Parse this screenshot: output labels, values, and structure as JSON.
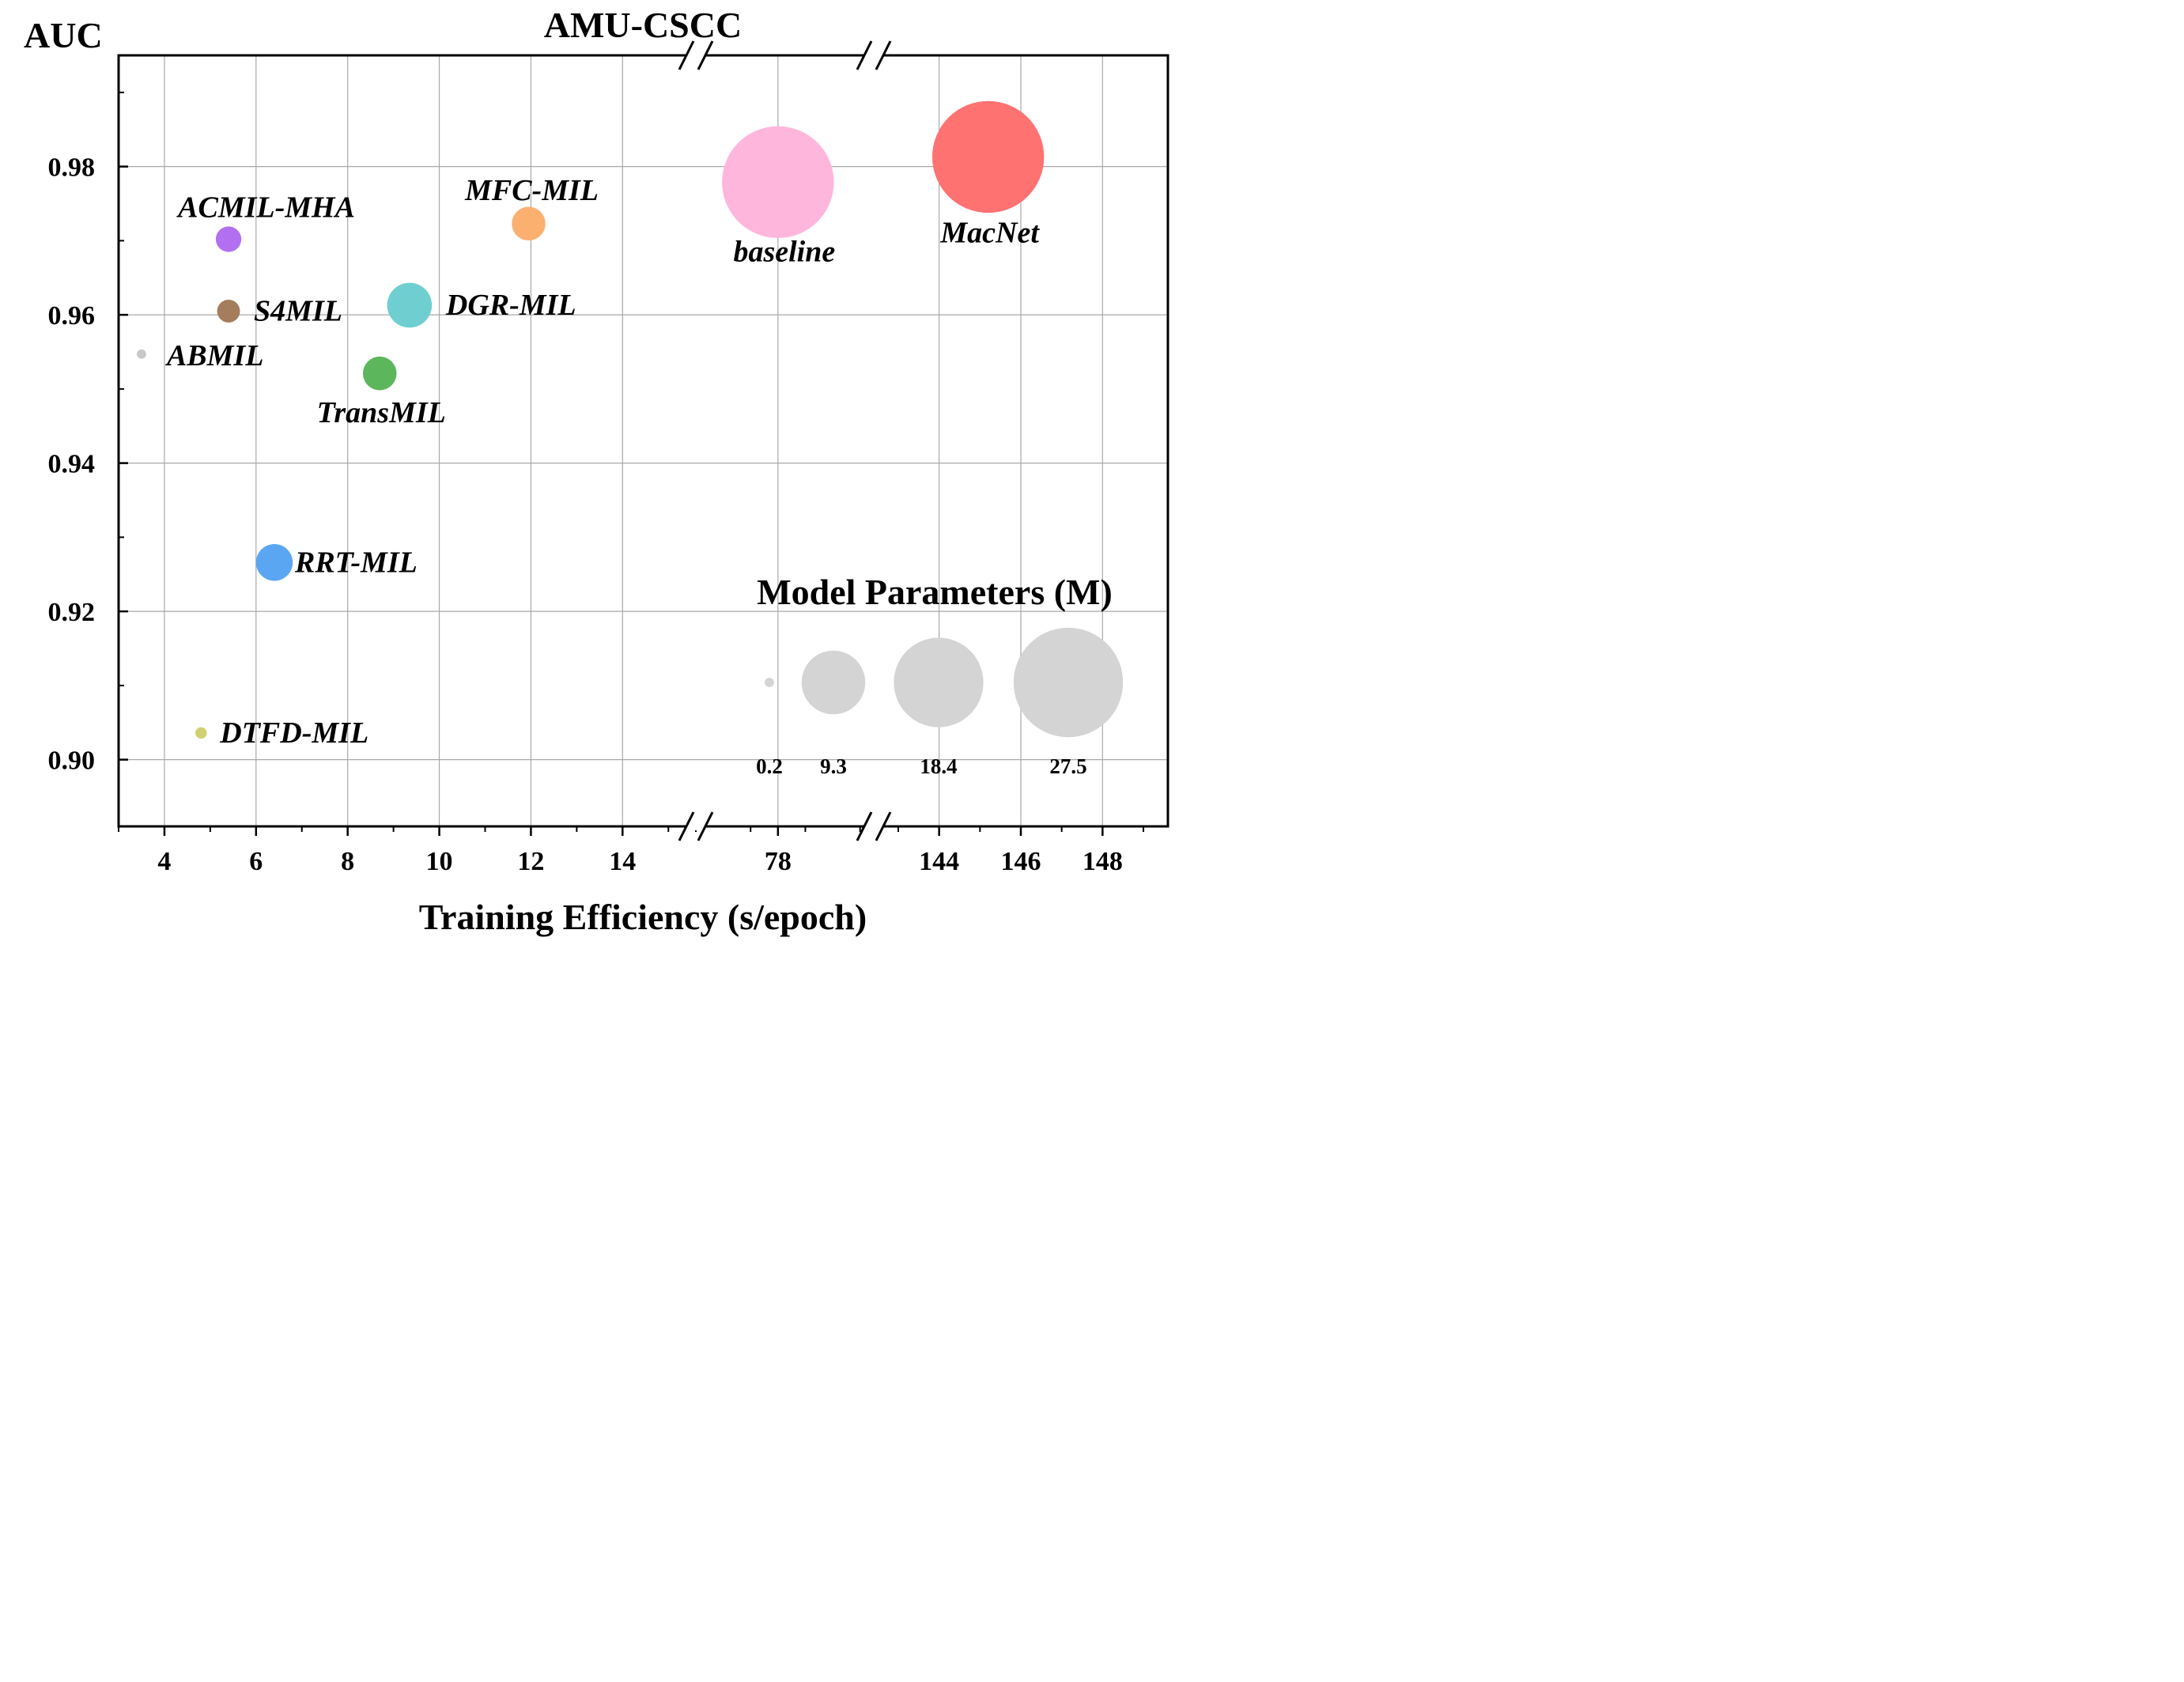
{
  "chart_data": {
    "type": "scatter",
    "title": "AMU-CSCC",
    "xlabel": "Training Efficiency (s/epoch)",
    "ylabel": "AUC",
    "ylim": [
      0.891,
      0.995
    ],
    "y_ticks": [
      "0.90",
      "0.92",
      "0.94",
      "0.96",
      "0.98"
    ],
    "y_tick_values": [
      0.9,
      0.92,
      0.94,
      0.96,
      0.98
    ],
    "x_axis_segments": [
      {
        "range": [
          3,
          15.6
        ],
        "ticks": [
          4,
          6,
          8,
          10,
          12,
          14
        ],
        "tick_labels": [
          "4",
          "6",
          "8",
          "10",
          "12",
          "14"
        ]
      },
      {
        "range": [
          75,
          81.5
        ],
        "ticks": [
          78
        ],
        "tick_labels": [
          "78"
        ]
      },
      {
        "range": [
          142.4,
          149.6
        ],
        "ticks": [
          144,
          146,
          148
        ],
        "tick_labels": [
          "144",
          "146",
          "148"
        ]
      }
    ],
    "grid": true,
    "points": [
      {
        "name": "ABMIL",
        "x": 3.5,
        "y": 0.9547,
        "size": 0.2,
        "color": "#c8c8c8"
      },
      {
        "name": "ACMIL-MHA",
        "x": 5.4,
        "y": 0.9702,
        "size": 1.5,
        "color": "#b26ff2"
      },
      {
        "name": "S4MIL",
        "x": 5.4,
        "y": 0.9605,
        "size": 1.2,
        "color": "#a47d5d"
      },
      {
        "name": "DTFD-MIL",
        "x": 4.8,
        "y": 0.9036,
        "size": 0.3,
        "color": "#d0d070"
      },
      {
        "name": "RRT-MIL",
        "x": 6.4,
        "y": 0.9266,
        "size": 3.1,
        "color": "#5aa6f2"
      },
      {
        "name": "TransMIL",
        "x": 8.7,
        "y": 0.9521,
        "size": 2.6,
        "color": "#5cb65c"
      },
      {
        "name": "DGR-MIL",
        "x": 9.35,
        "y": 0.9613,
        "size": 4.6,
        "color": "#6fcfd0"
      },
      {
        "name": "MFC-MIL",
        "x": 11.95,
        "y": 0.9723,
        "size": 2.6,
        "color": "#fbb070"
      },
      {
        "name": "baseline",
        "x": 78.0,
        "y": 0.9779,
        "size": 28.7,
        "color": "#ffb6dd"
      },
      {
        "name": "MacNet",
        "x": 145.2,
        "y": 0.9813,
        "size": 28.7,
        "color": "#ff7272"
      }
    ],
    "size_legend": {
      "title": "Model Parameters (M)",
      "values": [
        0.2,
        9.3,
        18.4,
        27.5
      ],
      "labels": [
        "0.2",
        "9.3",
        "18.4",
        "27.5"
      ],
      "color": "#d4d4d4"
    }
  }
}
